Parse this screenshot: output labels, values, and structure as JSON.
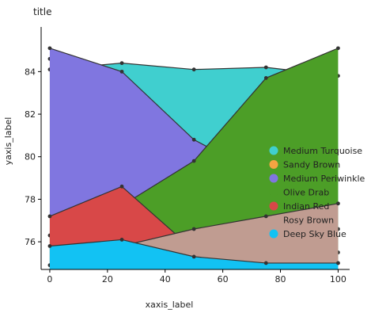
{
  "chart_data": {
    "type": "area",
    "title": "title",
    "xlabel": "xaxis_label",
    "ylabel": "yaxis_label",
    "xlim": [
      -3,
      104
    ],
    "ylim": [
      74.7,
      86.1
    ],
    "x_ticks": [
      0,
      20,
      40,
      60,
      80,
      100
    ],
    "y_ticks": [
      76,
      78,
      80,
      82,
      84
    ],
    "legend_position": "right",
    "series": [
      {
        "name": "Medium Turquoise",
        "color": "#40CFCF",
        "x": [
          0,
          25,
          50,
          75,
          100
        ],
        "y": [
          84.1,
          84.4,
          84.1,
          84.2,
          83.8
        ]
      },
      {
        "name": "Sandy Brown",
        "color": "#F4A442",
        "x": [
          0,
          25,
          50,
          75,
          100
        ],
        "y": [
          84.6,
          83.8,
          80.3,
          77.5,
          75.5
        ]
      },
      {
        "name": "Medium Periwinkle",
        "color": "#8076E0",
        "x": [
          0,
          25,
          50,
          75,
          100
        ],
        "y": [
          85.1,
          84.0,
          80.8,
          79.0,
          76.6
        ]
      },
      {
        "name": "Olive Drab",
        "color": "#4C9E27",
        "x": [
          0,
          25,
          50,
          75,
          100
        ],
        "y": [
          76.3,
          77.7,
          79.8,
          83.7,
          85.1
        ]
      },
      {
        "name": "Indian Red",
        "color": "#D84848",
        "x": [
          0,
          25,
          50,
          75,
          100
        ],
        "y": [
          77.2,
          78.6,
          75.6,
          74.9,
          75.0
        ]
      },
      {
        "name": "Rosy Brown",
        "color": "#C09C91",
        "x": [
          0,
          25,
          50,
          75,
          100
        ],
        "y": [
          74.9,
          75.8,
          76.6,
          77.2,
          77.8
        ]
      },
      {
        "name": "Deep Sky Blue",
        "color": "#12C2F3",
        "x": [
          0,
          25,
          50,
          75,
          100
        ],
        "y": [
          75.8,
          76.1,
          75.3,
          75.0,
          75.0
        ]
      }
    ]
  }
}
